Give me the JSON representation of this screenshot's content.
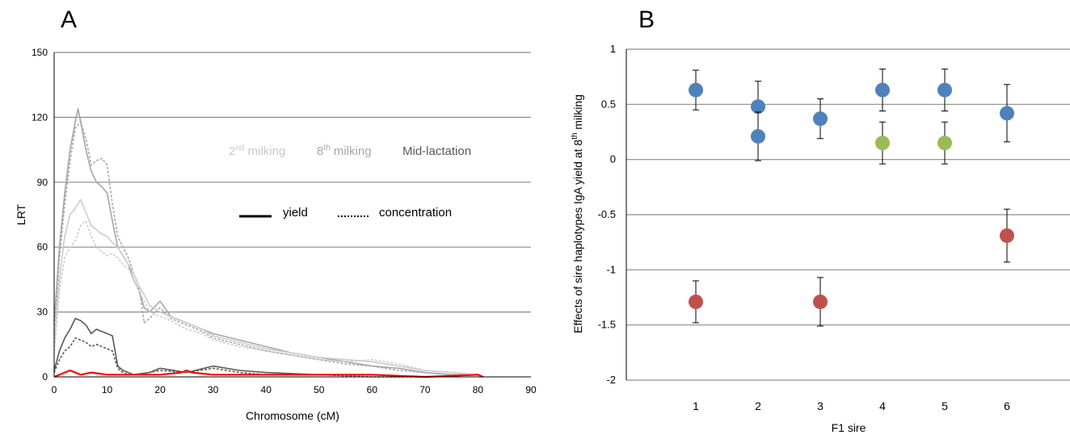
{
  "panels": {
    "a_label": "A",
    "b_label": "B"
  },
  "chart_data": [
    {
      "type": "line",
      "xlabel": "Chromosome (cM)",
      "ylabel": "LRT",
      "xlim": [
        0,
        90
      ],
      "ylim": [
        0,
        150
      ],
      "xticks": [
        0,
        10,
        20,
        30,
        40,
        50,
        60,
        70,
        80,
        90
      ],
      "yticks": [
        0,
        30,
        60,
        90,
        120,
        150
      ],
      "grid": "horizontal",
      "legend": {
        "milking_2nd": {
          "base": "2",
          "sup": "nd",
          "rest": " milking",
          "color": "#c8c8c8"
        },
        "milking_8th": {
          "base": "8",
          "sup": "th",
          "rest": " milking",
          "color": "#a6a6a6"
        },
        "mid_lactation": {
          "label": "Mid-lactation",
          "color": "#595959"
        },
        "yield_label": "yield",
        "concentration_label": "concentration"
      },
      "series": [
        {
          "color": "#a6a6a6",
          "style": "solid",
          "x": [
            0,
            1,
            2,
            3,
            4,
            4.5,
            5,
            6,
            7,
            8,
            9,
            10,
            11,
            12,
            13,
            14,
            15,
            16,
            17,
            18,
            20,
            22,
            25,
            28,
            30,
            35,
            40,
            45,
            50,
            55,
            60,
            65,
            70,
            75,
            80,
            81
          ],
          "y": [
            25,
            60,
            85,
            105,
            118,
            124,
            118,
            105,
            95,
            90,
            88,
            85,
            72,
            60,
            56,
            52,
            45,
            40,
            32,
            30,
            35,
            28,
            25,
            22,
            20,
            17,
            14,
            11,
            9,
            7,
            5,
            4,
            2,
            1,
            1,
            0
          ]
        },
        {
          "color": "#a6a6a6",
          "style": "dashed",
          "x": [
            0,
            1,
            2,
            3,
            4,
            5,
            6,
            7,
            8,
            9,
            10,
            11,
            12,
            13,
            14,
            15,
            16,
            17,
            18,
            20,
            22,
            25,
            28,
            30,
            35,
            40,
            45,
            50,
            55,
            60,
            65,
            70,
            75,
            80,
            81
          ],
          "y": [
            20,
            55,
            80,
            100,
            115,
            118,
            110,
            98,
            100,
            101,
            98,
            80,
            65,
            60,
            55,
            48,
            42,
            25,
            27,
            32,
            27,
            24,
            21,
            18,
            15,
            12,
            10,
            8,
            6,
            5,
            3,
            2,
            1,
            1,
            0
          ]
        },
        {
          "color": "#cccccc",
          "style": "solid",
          "x": [
            0,
            1,
            2,
            3,
            4,
            5,
            6,
            7,
            8,
            9,
            10,
            11,
            12,
            13,
            14,
            15,
            16,
            17,
            18,
            20,
            22,
            25,
            28,
            30,
            35,
            40,
            45,
            50,
            55,
            60,
            65,
            70,
            75,
            80
          ],
          "y": [
            15,
            45,
            65,
            75,
            78,
            82,
            76,
            70,
            68,
            66,
            65,
            62,
            60,
            56,
            52,
            48,
            42,
            38,
            33,
            30,
            28,
            25,
            22,
            19,
            16,
            13,
            11,
            9,
            8,
            7,
            5,
            3,
            2,
            1
          ]
        },
        {
          "color": "#cccccc",
          "style": "dashed",
          "x": [
            0,
            1,
            2,
            3,
            4,
            5,
            6,
            7,
            8,
            9,
            10,
            11,
            12,
            13,
            14,
            15,
            16,
            17,
            18,
            20,
            22,
            25,
            28,
            30,
            35,
            40,
            45,
            50,
            55,
            60,
            65,
            70,
            75,
            80
          ],
          "y": [
            10,
            40,
            55,
            60,
            63,
            70,
            72,
            65,
            60,
            58,
            56,
            57,
            55,
            52,
            50,
            45,
            40,
            35,
            30,
            28,
            26,
            22,
            20,
            17,
            14,
            12,
            10,
            8,
            7,
            8,
            6,
            3,
            2,
            1
          ]
        },
        {
          "color": "#595959",
          "style": "solid",
          "x": [
            0,
            1,
            2,
            3,
            4,
            5,
            6,
            7,
            8,
            9,
            10,
            11,
            12,
            13,
            14,
            15,
            18,
            20,
            25,
            30,
            35,
            40,
            50,
            60,
            70
          ],
          "y": [
            3,
            12,
            18,
            22,
            27,
            26,
            24,
            20,
            22,
            21,
            20,
            19,
            5,
            3,
            2,
            1,
            2,
            4,
            2,
            5,
            3,
            2,
            1,
            1,
            0
          ]
        },
        {
          "color": "#595959",
          "style": "dashed",
          "x": [
            0,
            1,
            2,
            3,
            4,
            5,
            6,
            7,
            8,
            9,
            10,
            11,
            12,
            13,
            14,
            15,
            18,
            20,
            25,
            30,
            35,
            40,
            50,
            60,
            70
          ],
          "y": [
            2,
            8,
            12,
            14,
            18,
            17,
            16,
            14,
            15,
            14,
            13,
            12,
            4,
            2,
            1,
            1,
            2,
            3,
            2,
            4,
            2,
            1,
            1,
            0,
            0
          ]
        },
        {
          "color": "#ff0000",
          "style": "solid",
          "x": [
            0,
            2,
            3,
            5,
            7,
            10,
            15,
            20,
            24,
            25,
            26,
            30,
            40,
            48,
            50,
            60,
            70,
            80,
            81
          ],
          "y": [
            0,
            2,
            3,
            1,
            2,
            1,
            1,
            1,
            2,
            3,
            2,
            1,
            1,
            1,
            1,
            1,
            0,
            1,
            0
          ]
        }
      ]
    },
    {
      "type": "scatter",
      "xlabel": "F1 sire",
      "ylabel_parts": {
        "pre": "Effects of sire haplotypes IgA yield at 8",
        "sup": "th",
        "post": " milking"
      },
      "ylim": [
        -2,
        1
      ],
      "yticks": [
        "1",
        "0.5",
        "0",
        "-0.5",
        "-1",
        "-1.5",
        "-2"
      ],
      "categories": [
        "1",
        "2",
        "3",
        "4",
        "5",
        "6"
      ],
      "grid": "horizontal",
      "colors": {
        "blue": "#4f81bd",
        "green": "#9bbb59",
        "red": "#c0504d"
      },
      "points": [
        {
          "x": 1,
          "y": 0.63,
          "err": 0.18,
          "color": "blue"
        },
        {
          "x": 1,
          "y": -1.29,
          "err": 0.19,
          "color": "red"
        },
        {
          "x": 2,
          "y": 0.48,
          "err": 0.23,
          "color": "blue"
        },
        {
          "x": 2,
          "y": 0.21,
          "err": 0.22,
          "color": "blue"
        },
        {
          "x": 3,
          "y": 0.37,
          "err": 0.18,
          "color": "blue"
        },
        {
          "x": 3,
          "y": -1.29,
          "err": 0.22,
          "color": "red"
        },
        {
          "x": 4,
          "y": 0.63,
          "err": 0.19,
          "color": "blue"
        },
        {
          "x": 4,
          "y": 0.15,
          "err": 0.19,
          "color": "green"
        },
        {
          "x": 5,
          "y": 0.63,
          "err": 0.19,
          "color": "blue"
        },
        {
          "x": 5,
          "y": 0.15,
          "err": 0.19,
          "color": "green"
        },
        {
          "x": 6,
          "y": 0.42,
          "err": 0.26,
          "color": "blue"
        },
        {
          "x": 6,
          "y": -0.69,
          "err": 0.24,
          "color": "red"
        }
      ]
    }
  ]
}
